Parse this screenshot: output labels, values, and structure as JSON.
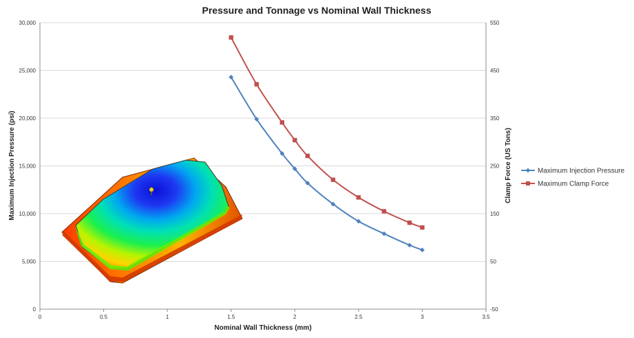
{
  "chart_data": {
    "type": "line",
    "title": "Pressure and Tonnage vs Nominal Wall Thickness",
    "xlabel": "Nominal Wall Thickness (mm)",
    "ylabel": "Maximum Injection Pressure (psi)",
    "y2label": "Clamp Force (US Tons)",
    "xlim": [
      0,
      3.5
    ],
    "ylim": [
      0,
      30000
    ],
    "y2lim": [
      -50,
      550
    ],
    "x_ticks": [
      0,
      0.5,
      1,
      1.5,
      2,
      2.5,
      3,
      3.5
    ],
    "x_tick_labels": [
      "0",
      "0.5",
      "1",
      "1.5",
      "2",
      "2.5",
      "3",
      "3.5"
    ],
    "y_ticks": [
      0,
      5000,
      10000,
      15000,
      20000,
      25000,
      30000
    ],
    "y_tick_labels": [
      "0",
      "5,000",
      "10,000",
      "15,000",
      "20,000",
      "25,000",
      "30,000"
    ],
    "y2_ticks": [
      -50,
      50,
      150,
      250,
      350,
      450,
      550
    ],
    "y2_tick_labels": [
      "-50",
      "50",
      "150",
      "250",
      "350",
      "450",
      "550"
    ],
    "grid": true,
    "legend_position": "right",
    "series": [
      {
        "name": "Maximum Injection Pressure",
        "axis": "left",
        "marker": "diamond",
        "color": "#4f81bd",
        "x": [
          1.5,
          1.7,
          1.9,
          2.0,
          2.1,
          2.3,
          2.5,
          2.7,
          2.9,
          3.0
        ],
        "y": [
          24300,
          19900,
          16300,
          14700,
          13200,
          11000,
          9200,
          7900,
          6700,
          6200
        ]
      },
      {
        "name": "Maximum Clamp Force",
        "axis": "right",
        "marker": "square",
        "color": "#c0504d",
        "x": [
          1.5,
          1.7,
          1.9,
          2.0,
          2.1,
          2.3,
          2.5,
          2.7,
          2.9,
          3.0
        ],
        "y": [
          519,
          421,
          341,
          304,
          271,
          221,
          184,
          155,
          131,
          121
        ]
      }
    ]
  },
  "colors": {
    "grid": "#d9d9d9",
    "axis": "#8c8c8c"
  },
  "overlay_image": {
    "icon": "molded-part-fill-plot-image"
  }
}
